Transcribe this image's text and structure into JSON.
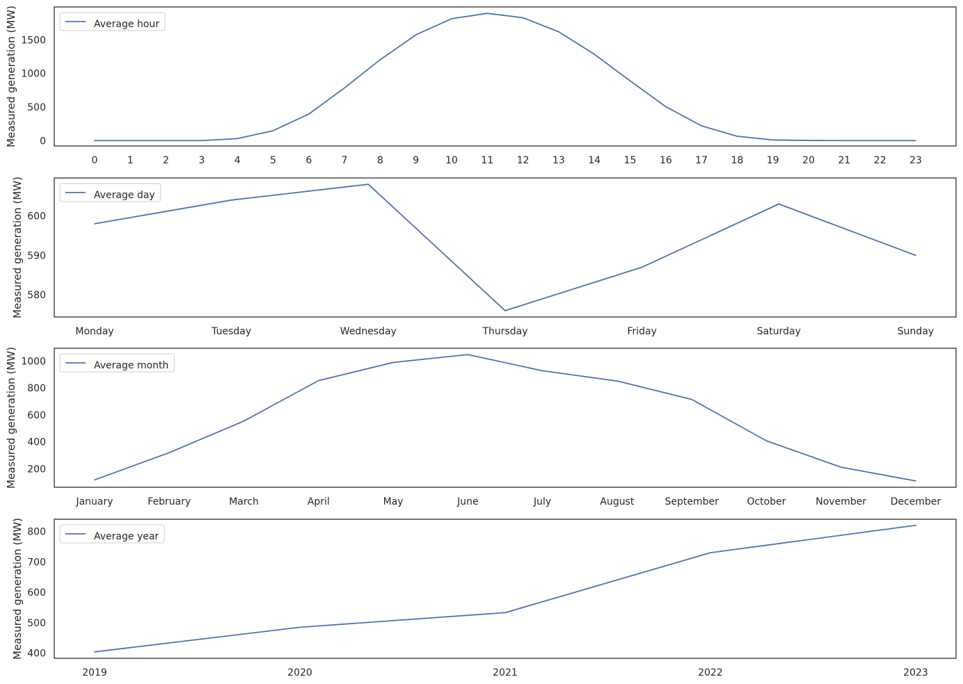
{
  "chart_data": [
    {
      "type": "line",
      "legend_position": "top-left",
      "grid": false,
      "ylabel": "Measured generation (MW)",
      "series": [
        {
          "name": "Average hour",
          "color": "#4c72b0",
          "values": [
            0,
            0,
            0,
            0,
            30,
            148,
            395,
            785,
            1205,
            1575,
            1815,
            1895,
            1830,
            1620,
            1285,
            890,
            505,
            220,
            65,
            10,
            2,
            0,
            0,
            0
          ]
        }
      ],
      "categories": [
        "0",
        "1",
        "2",
        "3",
        "4",
        "5",
        "6",
        "7",
        "8",
        "9",
        "10",
        "11",
        "12",
        "13",
        "14",
        "15",
        "16",
        "17",
        "18",
        "19",
        "20",
        "21",
        "22",
        "23"
      ],
      "yticks": [
        0,
        500,
        1000,
        1500
      ],
      "ytick_labels": [
        "0",
        "500",
        "1000",
        "1500"
      ],
      "ylim": [
        -80,
        1990
      ]
    },
    {
      "type": "line",
      "legend_position": "top-left",
      "grid": false,
      "ylabel": "Measured generation (MW)",
      "series": [
        {
          "name": "Average day",
          "color": "#4c72b0",
          "values": [
            598,
            604,
            608,
            576,
            587,
            603,
            590
          ]
        }
      ],
      "categories": [
        "Monday",
        "Tuesday",
        "Wednesday",
        "Thursday",
        "Friday",
        "Saturday",
        "Sunday"
      ],
      "yticks": [
        580,
        590,
        600
      ],
      "ytick_labels": [
        "580",
        "590",
        "600"
      ],
      "ylim": [
        574.4,
        609.6
      ]
    },
    {
      "type": "line",
      "legend_position": "top-left",
      "grid": false,
      "ylabel": "Measured generation (MW)",
      "series": [
        {
          "name": "Average month",
          "color": "#4c72b0",
          "values": [
            118,
            320,
            555,
            855,
            990,
            1048,
            928,
            852,
            715,
            408,
            212,
            110
          ]
        }
      ],
      "categories": [
        "January",
        "February",
        "March",
        "April",
        "May",
        "June",
        "July",
        "August",
        "September",
        "October",
        "November",
        "December"
      ],
      "yticks": [
        200,
        400,
        600,
        800,
        1000
      ],
      "ytick_labels": [
        "200",
        "400",
        "600",
        "800",
        "1000"
      ],
      "ylim": [
        63,
        1095
      ]
    },
    {
      "type": "line",
      "legend_position": "top-left",
      "grid": false,
      "ylabel": "Measured generation (MW)",
      "series": [
        {
          "name": "Average year",
          "color": "#4c72b0",
          "values": [
            404,
            485,
            533,
            730,
            820
          ]
        }
      ],
      "categories": [
        "2019",
        "2020",
        "2021",
        "2022",
        "2023"
      ],
      "yticks": [
        400,
        500,
        600,
        700,
        800
      ],
      "ytick_labels": [
        "400",
        "500",
        "600",
        "700",
        "800"
      ],
      "ylim": [
        383,
        840
      ]
    }
  ]
}
